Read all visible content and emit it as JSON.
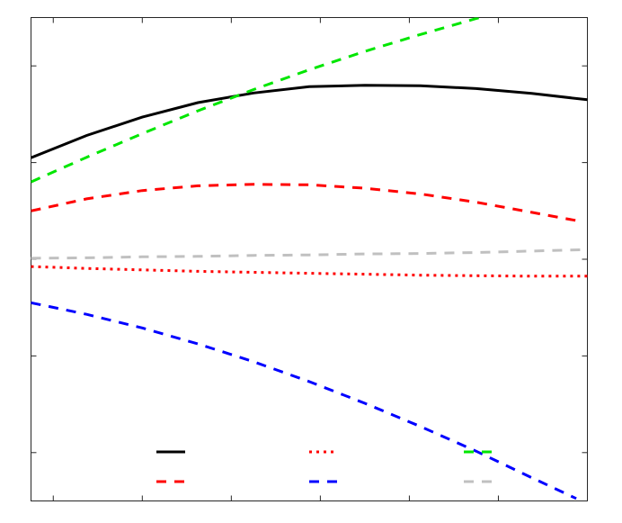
{
  "chart_data": {
    "type": "line",
    "title": "",
    "xlabel": "",
    "ylabel": "",
    "xlim": [
      0,
      10
    ],
    "ylim": [
      0,
      10
    ],
    "x_ticks": [
      0.4,
      2.0,
      3.6,
      5.2,
      6.8,
      8.4,
      10.0
    ],
    "y_ticks": [
      1.0,
      3.0,
      5.0,
      7.0,
      9.0
    ],
    "grid": false,
    "legend_placement": "bottom-center",
    "series": [
      {
        "color": "#000000",
        "style": "solid",
        "x": [
          0,
          1,
          2,
          3,
          4,
          5,
          6,
          7,
          8,
          9,
          10
        ],
        "y": [
          7.1,
          7.56,
          7.94,
          8.24,
          8.44,
          8.57,
          8.6,
          8.59,
          8.53,
          8.43,
          8.3
        ]
      },
      {
        "color": "#ff0000",
        "style": "dotted",
        "x": [
          0,
          1,
          2,
          3,
          4,
          5,
          6,
          7,
          8,
          9,
          10
        ],
        "y": [
          4.85,
          4.81,
          4.78,
          4.75,
          4.73,
          4.71,
          4.69,
          4.67,
          4.66,
          4.65,
          4.65
        ]
      },
      {
        "color": "#00e600",
        "style": "dashed",
        "x": [
          0,
          1,
          2,
          3,
          4,
          5,
          6,
          7,
          8,
          9,
          10
        ],
        "y": [
          6.6,
          7.11,
          7.6,
          8.07,
          8.51,
          8.92,
          9.3,
          9.65,
          9.98,
          10.3,
          10.6
        ]
      },
      {
        "color": "#ff0000",
        "style": "dashed",
        "x": [
          0,
          1,
          2,
          3,
          4,
          5,
          6,
          7,
          8,
          9,
          9.8
        ],
        "y": [
          6.0,
          6.25,
          6.42,
          6.52,
          6.55,
          6.54,
          6.47,
          6.35,
          6.18,
          5.97,
          5.8
        ]
      },
      {
        "color": "#0000ff",
        "style": "dashed",
        "x": [
          0,
          1,
          2,
          3,
          4,
          5,
          6,
          7,
          8,
          9,
          9.8
        ],
        "y": [
          4.1,
          3.86,
          3.58,
          3.25,
          2.88,
          2.47,
          2.02,
          1.54,
          1.03,
          0.48,
          0.05
        ]
      },
      {
        "color": "#c0c0c0",
        "style": "dashed",
        "x": [
          0,
          1,
          2,
          3,
          4,
          5,
          6,
          7,
          8,
          9,
          10
        ],
        "y": [
          5.02,
          5.03,
          5.05,
          5.06,
          5.08,
          5.09,
          5.11,
          5.12,
          5.14,
          5.17,
          5.2
        ]
      }
    ]
  }
}
